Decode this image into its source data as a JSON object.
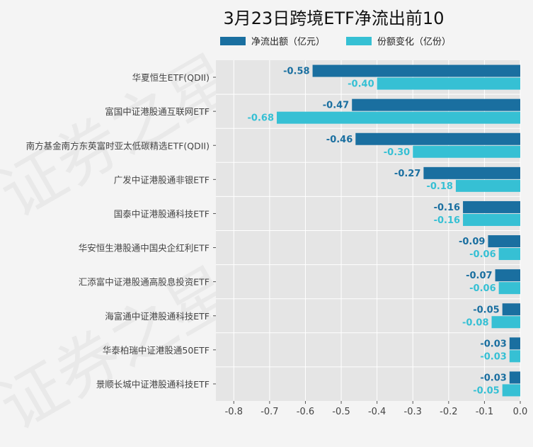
{
  "watermark": "证券之星",
  "chart_data": {
    "type": "bar",
    "orientation": "horizontal",
    "title": "3月23日跨境ETF净流出前10",
    "xlabel": "",
    "ylabel": "",
    "xlim": [
      -0.85,
      0
    ],
    "xticks": [
      "-0.8",
      "-0.7",
      "-0.6",
      "-0.5",
      "-0.4",
      "-0.3",
      "-0.2",
      "-0.1",
      "0.0"
    ],
    "xtick_values": [
      -0.8,
      -0.7,
      -0.6,
      -0.5,
      -0.4,
      -0.3,
      -0.2,
      -0.1,
      0
    ],
    "grid": true,
    "legend_position": "top",
    "categories": [
      "华夏恒生ETF(QDII)",
      "富国中证港股通互联网ETF",
      "南方基金南方东英富时亚太低碳精选ETF(QDII)",
      "广发中证港股通非银ETF",
      "国泰中证港股通科技ETF",
      "华安恒生港股通中国央企红利ETF",
      "汇添富中证港股通高股息投资ETF",
      "海富通中证港股通科技ETF",
      "华泰柏瑞中证港股通50ETF",
      "景顺长城中证港股通科技ETF"
    ],
    "series": [
      {
        "name": "净流出额（亿元）",
        "color": "#1a6fa0",
        "values": [
          -0.58,
          -0.47,
          -0.46,
          -0.27,
          -0.16,
          -0.09,
          -0.07,
          -0.05,
          -0.03,
          -0.03
        ],
        "labels": [
          "-0.58",
          "-0.47",
          "-0.46",
          "-0.27",
          "-0.16",
          "-0.09",
          "-0.07",
          "-0.05",
          "-0.03",
          "-0.03"
        ]
      },
      {
        "name": "份额变化（亿份）",
        "color": "#36c0d4",
        "values": [
          -0.4,
          -0.68,
          -0.3,
          -0.18,
          -0.16,
          -0.06,
          -0.06,
          -0.08,
          -0.03,
          -0.05
        ],
        "labels": [
          "-0.40",
          "-0.68",
          "-0.30",
          "-0.18",
          "-0.16",
          "-0.06",
          "-0.06",
          "-0.08",
          "-0.03",
          "-0.05"
        ]
      }
    ]
  }
}
